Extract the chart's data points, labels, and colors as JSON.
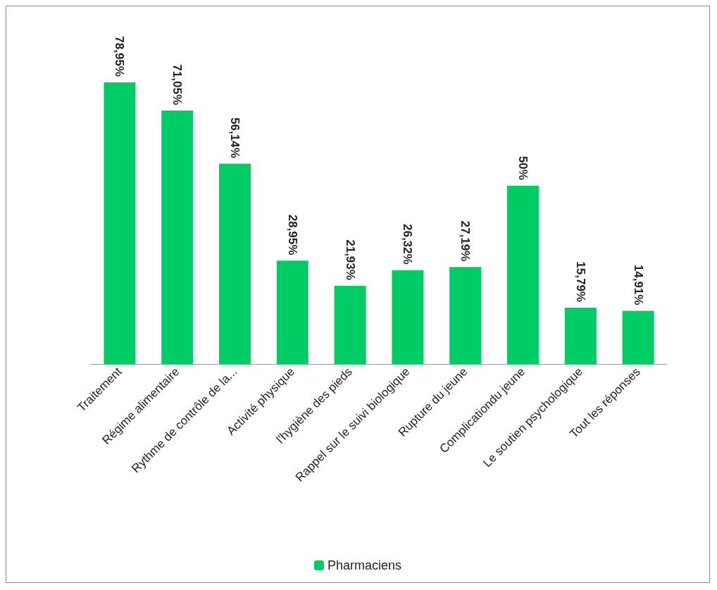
{
  "chart_data": {
    "type": "bar",
    "categories": [
      "Traitement",
      "Régime alimentaire",
      "Rythme de contrôle de la...",
      "Activité physique",
      "l'hygiène des pieds",
      "Rappel sur le suivi biologique",
      "Rupture du jeune",
      "Complicationdu jeune",
      "Le soutien psychologique",
      "Tout les réponses"
    ],
    "series": [
      {
        "name": "Pharmaciens",
        "color": "#00cc66",
        "values": [
          78.95,
          71.05,
          56.14,
          28.95,
          21.93,
          26.32,
          27.19,
          50,
          15.79,
          14.91
        ],
        "value_labels": [
          "78,95%",
          "71,05%",
          "56,14%",
          "28,95%",
          "21,93%",
          "26,32%",
          "27,19%",
          "50%",
          "15,79%",
          "14,91%"
        ]
      }
    ],
    "legend": "bottom"
  }
}
